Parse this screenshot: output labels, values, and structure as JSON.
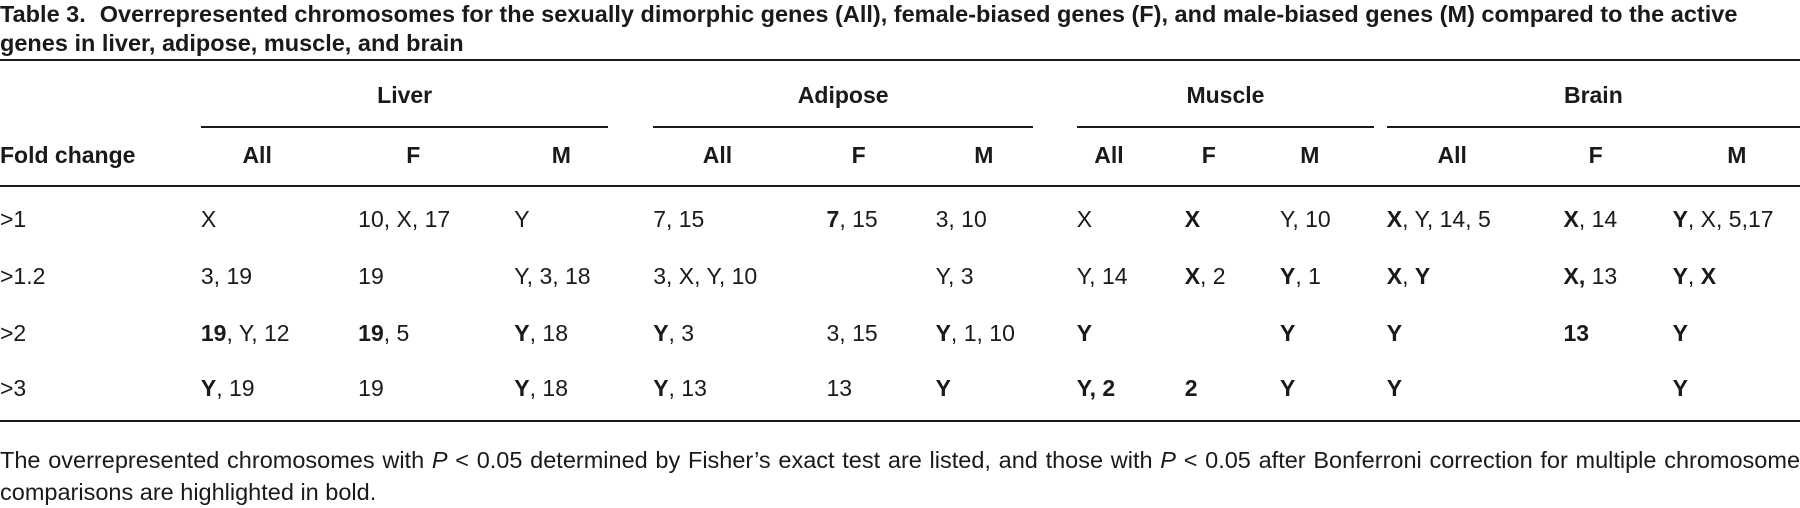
{
  "title": {
    "label": "Table 3.",
    "text": "Overrepresented chromosomes for the sexually dimorphic genes (All), female-biased genes (F), and male-biased genes (M) compared to the active genes in liver, adipose, muscle, and brain"
  },
  "table": {
    "stub_header": "Fold change",
    "groups": [
      "Liver",
      "Adipose",
      "Muscle",
      "Brain"
    ],
    "subheaders": [
      "All",
      "F",
      "M",
      "All",
      "F",
      "M",
      "All",
      "F",
      "M",
      "All",
      "F",
      "M"
    ],
    "rows": [
      {
        "label": ">1",
        "cells": [
          [
            {
              "text": "X"
            }
          ],
          [
            {
              "text": "10, X, 17"
            }
          ],
          [
            {
              "text": "Y"
            }
          ],
          [
            {
              "text": "7, 15"
            }
          ],
          [
            {
              "text": "7",
              "bold": true
            },
            {
              "text": ", 15"
            }
          ],
          [
            {
              "text": "3, 10"
            }
          ],
          [
            {
              "text": "X"
            }
          ],
          [
            {
              "text": "X",
              "bold": true
            }
          ],
          [
            {
              "text": "Y, 10"
            }
          ],
          [
            {
              "text": "X",
              "bold": true
            },
            {
              "text": ", Y, 14, 5"
            }
          ],
          [
            {
              "text": "X",
              "bold": true
            },
            {
              "text": ", 14"
            }
          ],
          [
            {
              "text": "Y",
              "bold": true
            },
            {
              "text": ", X, 5,17"
            }
          ]
        ]
      },
      {
        "label": ">1.2",
        "cells": [
          [
            {
              "text": "3, 19"
            }
          ],
          [
            {
              "text": "19"
            }
          ],
          [
            {
              "text": "Y, 3, 18"
            }
          ],
          [
            {
              "text": "3, X, Y, 10"
            }
          ],
          [],
          [
            {
              "text": "Y, 3"
            }
          ],
          [
            {
              "text": "Y, 14"
            }
          ],
          [
            {
              "text": "X",
              "bold": true
            },
            {
              "text": ", 2"
            }
          ],
          [
            {
              "text": "Y",
              "bold": true
            },
            {
              "text": ", 1"
            }
          ],
          [
            {
              "text": "X",
              "bold": true
            },
            {
              "text": ", "
            },
            {
              "text": "Y",
              "bold": true
            }
          ],
          [
            {
              "text": "X,",
              "bold": true
            },
            {
              "text": " 13"
            }
          ],
          [
            {
              "text": "Y",
              "bold": true
            },
            {
              "text": ", "
            },
            {
              "text": "X",
              "bold": true
            }
          ]
        ]
      },
      {
        "label": ">2",
        "cells": [
          [
            {
              "text": "19",
              "bold": true
            },
            {
              "text": ", Y, 12"
            }
          ],
          [
            {
              "text": "19",
              "bold": true
            },
            {
              "text": ", 5"
            }
          ],
          [
            {
              "text": "Y",
              "bold": true
            },
            {
              "text": ", 18"
            }
          ],
          [
            {
              "text": "Y",
              "bold": true
            },
            {
              "text": ", 3"
            }
          ],
          [
            {
              "text": "3, 15"
            }
          ],
          [
            {
              "text": "Y",
              "bold": true
            },
            {
              "text": ", 1, 10"
            }
          ],
          [
            {
              "text": "Y",
              "bold": true
            }
          ],
          [],
          [
            {
              "text": "Y",
              "bold": true
            }
          ],
          [
            {
              "text": "Y",
              "bold": true
            }
          ],
          [
            {
              "text": "13",
              "bold": true
            }
          ],
          [
            {
              "text": "Y",
              "bold": true
            }
          ]
        ]
      },
      {
        "label": ">3",
        "cells": [
          [
            {
              "text": "Y",
              "bold": true
            },
            {
              "text": ", 19"
            }
          ],
          [
            {
              "text": "19"
            }
          ],
          [
            {
              "text": "Y",
              "bold": true
            },
            {
              "text": ", 18"
            }
          ],
          [
            {
              "text": "Y",
              "bold": true
            },
            {
              "text": ", 13"
            }
          ],
          [
            {
              "text": "13"
            }
          ],
          [
            {
              "text": "Y",
              "bold": true
            }
          ],
          [
            {
              "text": "Y, 2",
              "bold": true
            }
          ],
          [
            {
              "text": "2",
              "bold": true
            }
          ],
          [
            {
              "text": "Y",
              "bold": true
            }
          ],
          [
            {
              "text": "Y",
              "bold": true
            }
          ],
          [],
          [
            {
              "text": "Y",
              "bold": true
            }
          ]
        ]
      }
    ]
  },
  "footnote": [
    {
      "text": "The overrepresented chromosomes with "
    },
    {
      "text": "P",
      "italic": true
    },
    {
      "text": " < 0.05 determined by Fisher’s exact test are listed, and those with "
    },
    {
      "text": "P",
      "italic": true
    },
    {
      "text": " < 0.05 after Bonferroni correction for multiple chromosome comparisons are highlighted in bold."
    }
  ]
}
